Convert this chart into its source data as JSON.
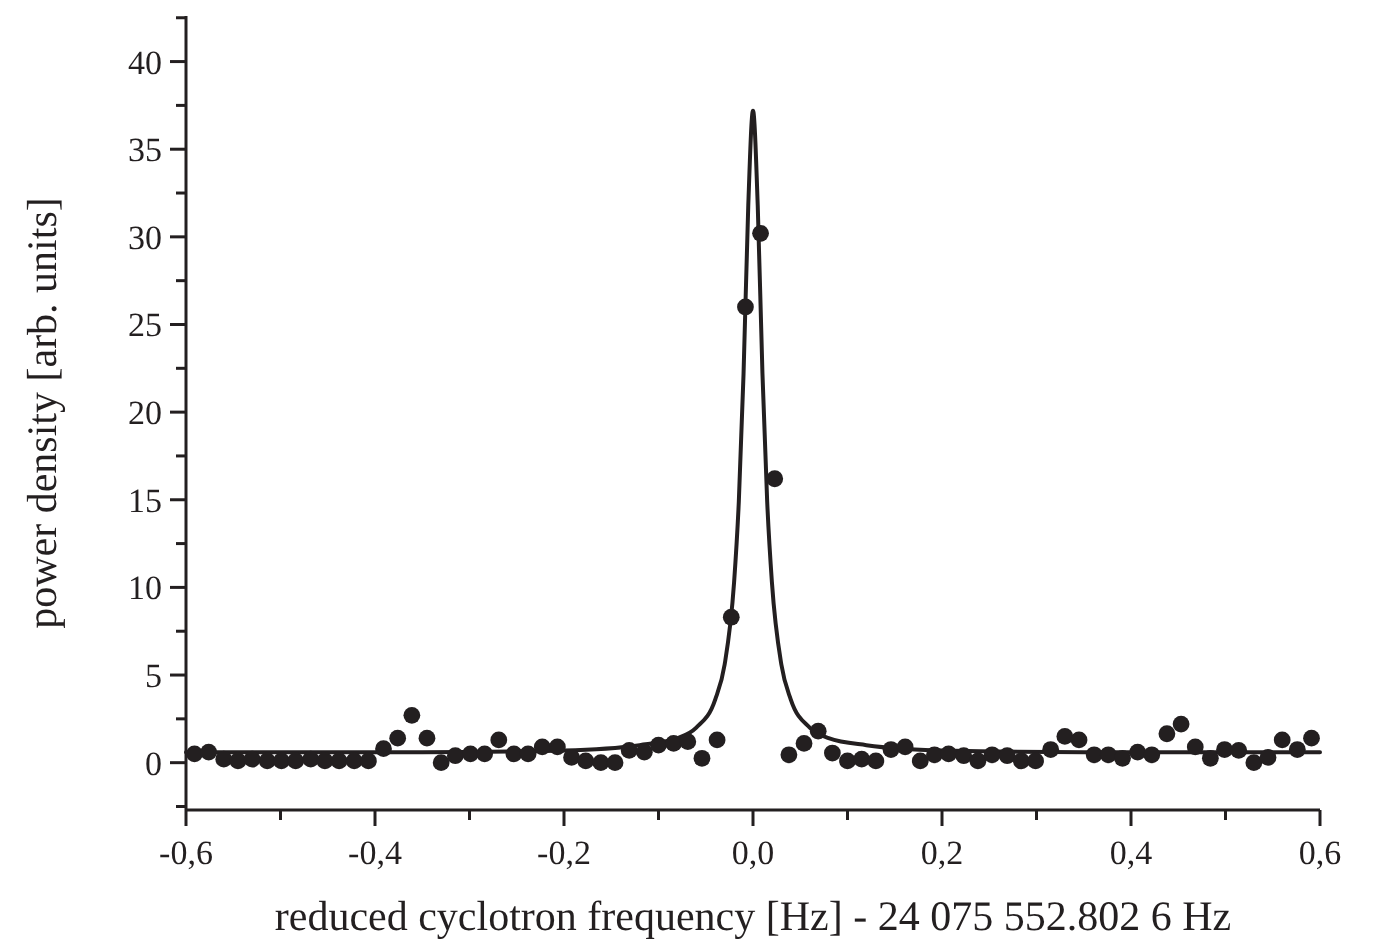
{
  "chart_data": {
    "type": "scatter",
    "xlabel": "reduced cyclotron frequency [Hz] - 24 075 552.802 6 Hz",
    "ylabel": "power density [arb. units]",
    "xlim": [
      -0.6,
      0.6
    ],
    "ylim": [
      -2.7,
      42.6
    ],
    "xticks": [
      {
        "value": -0.6,
        "label": "-0,6"
      },
      {
        "value": -0.5,
        "label": null
      },
      {
        "value": -0.4,
        "label": "-0,4"
      },
      {
        "value": -0.3,
        "label": null
      },
      {
        "value": -0.2,
        "label": "-0,2"
      },
      {
        "value": -0.1,
        "label": null
      },
      {
        "value": 0,
        "label": "0,0"
      },
      {
        "value": 0.1,
        "label": null
      },
      {
        "value": 0.2,
        "label": "0,2"
      },
      {
        "value": 0.3,
        "label": null
      },
      {
        "value": 0.4,
        "label": "0,4"
      },
      {
        "value": 0.5,
        "label": null
      },
      {
        "value": 0.6,
        "label": "0,6"
      }
    ],
    "yticks": [
      {
        "value": -2.5,
        "label": null
      },
      0,
      {
        "value": 2.5,
        "label": null
      },
      5,
      {
        "value": 7.5,
        "label": null
      },
      10,
      {
        "value": 12.5,
        "label": null
      },
      15,
      {
        "value": 17.5,
        "label": null
      },
      20,
      {
        "value": 22.5,
        "label": null
      },
      25,
      {
        "value": 27.5,
        "label": null
      },
      30,
      {
        "value": 32.5,
        "label": null
      },
      35,
      {
        "value": 37.5,
        "label": null
      },
      40,
      {
        "value": 42.5,
        "label": null
      }
    ],
    "grid": false,
    "series": [
      {
        "type": "line",
        "color": "#231f20",
        "line_style": "solid",
        "marker": "none",
        "x": [
          -0.6,
          -0.35,
          -0.2,
          -0.12,
          -0.08,
          -0.06,
          -0.04,
          -0.03,
          -0.02,
          -0.015,
          -0.01,
          -0.005,
          0,
          0.005,
          0.01,
          0.015,
          0.02,
          0.03,
          0.04,
          0.06,
          0.08,
          0.12,
          0.2,
          0.35,
          0.6
        ],
        "values": [
          0.6,
          0.6,
          0.7,
          1.0,
          1.4,
          2.0,
          3.6,
          5.6,
          10.3,
          14.9,
          22.2,
          31.8,
          37.2,
          31.8,
          22.2,
          14.9,
          10.3,
          5.6,
          3.6,
          2.0,
          1.4,
          1.0,
          0.7,
          0.6,
          0.6
        ]
      },
      {
        "color": "#231f20",
        "marker": "circle",
        "x": [
          -0.591,
          -0.576,
          -0.56,
          -0.545,
          -0.53,
          -0.514,
          -0.499,
          -0.484,
          -0.468,
          -0.453,
          -0.438,
          -0.422,
          -0.407,
          -0.391,
          -0.376,
          -0.361,
          -0.345,
          -0.33,
          -0.315,
          -0.299,
          -0.284,
          -0.269,
          -0.253,
          -0.238,
          -0.223,
          -0.207,
          -0.192,
          -0.177,
          -0.161,
          -0.146,
          -0.131,
          -0.115,
          -0.1,
          -0.084,
          -0.069,
          -0.054,
          -0.038,
          -0.023,
          -0.008,
          0.008,
          0.023,
          0.038,
          0.054,
          0.069,
          0.084,
          0.1,
          0.115,
          0.13,
          0.146,
          0.161,
          0.177,
          0.192,
          0.207,
          0.223,
          0.238,
          0.253,
          0.269,
          0.284,
          0.299,
          0.315,
          0.33,
          0.345,
          0.361,
          0.376,
          0.391,
          0.407,
          0.422,
          0.438,
          0.453,
          0.468,
          0.484,
          0.499,
          0.514,
          0.53,
          0.545,
          0.56,
          0.576,
          0.591
        ],
        "values": [
          0.5,
          0.6,
          0.2,
          0.1,
          0.2,
          0.1,
          0.1,
          0.1,
          0.2,
          0.1,
          0.1,
          0.1,
          0.1,
          0.8,
          1.4,
          2.7,
          1.4,
          0.0,
          0.4,
          0.5,
          0.5,
          1.3,
          0.5,
          0.5,
          0.9,
          0.9,
          0.3,
          0.1,
          0.0,
          0.0,
          0.7,
          0.6,
          1.0,
          1.1,
          1.2,
          0.25,
          1.3,
          8.3,
          26.0,
          30.2,
          16.2,
          0.45,
          1.1,
          1.8,
          0.55,
          0.1,
          0.2,
          0.1,
          0.75,
          0.9,
          0.1,
          0.45,
          0.5,
          0.4,
          0.1,
          0.45,
          0.4,
          0.1,
          0.1,
          0.75,
          1.5,
          1.3,
          0.45,
          0.45,
          0.25,
          0.6,
          0.45,
          1.65,
          2.2,
          0.9,
          0.25,
          0.75,
          0.7,
          0.0,
          0.3,
          1.3,
          0.75,
          1.4
        ]
      }
    ]
  }
}
